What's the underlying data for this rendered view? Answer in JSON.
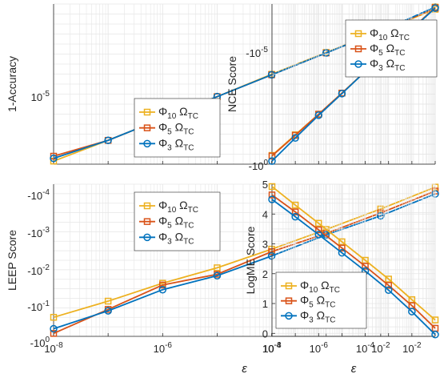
{
  "colors": {
    "phi10": "#EDB120",
    "phi5": "#D95319",
    "phi3": "#0072BD",
    "grid": "#e6e6e6",
    "axis": "#262626"
  },
  "chart_data": [
    {
      "type": "line",
      "ylabel": "1-Accuracy",
      "xscale": "log",
      "x": [
        1e-08,
        1e-07,
        1e-06,
        1e-05,
        0.0001,
        0.001,
        0.01,
        0.1
      ],
      "xlim": [
        1e-08,
        0.1
      ],
      "xtick_labels": [],
      "ytick_labels": [
        "10^{-5}"
      ],
      "grid": true,
      "legend": "bottom-right",
      "series": [
        {
          "name": "Φ10 ΩTC",
          "marker": "square",
          "values": [
            -1.2,
            -0.82,
            -0.42,
            -0.02,
            0.39,
            0.79,
            1.18,
            1.58
          ]
        },
        {
          "name": "Φ5 ΩTC",
          "marker": "square",
          "values": [
            -1.11,
            -0.82,
            -0.42,
            -0.02,
            0.38,
            0.78,
            1.18,
            1.6
          ]
        },
        {
          "name": "Φ3 ΩTC",
          "marker": "circle",
          "values": [
            -1.15,
            -0.82,
            -0.42,
            -0.02,
            0.38,
            0.78,
            1.18,
            1.62
          ]
        }
      ]
    },
    {
      "type": "line",
      "ylabel": "NCE Score",
      "xscale": "log",
      "x": [
        1e-08,
        1e-07,
        1e-06,
        1e-05,
        0.0001,
        0.001,
        0.01,
        0.1
      ],
      "xlim": [
        1e-08,
        0.1
      ],
      "xtick_labels": [],
      "ytick_labels": [
        "-10^{-5}",
        "-10^{0}"
      ],
      "grid": true,
      "legend": "top-right",
      "series": [
        {
          "name": "Φ10 ΩTC",
          "marker": "square",
          "values": [
            -5.73,
            -5.33,
            -4.93,
            -4.52,
            -4.1,
            -3.69,
            -3.28,
            -2.85
          ]
        },
        {
          "name": "Φ5 ΩTC",
          "marker": "square",
          "values": [
            -5.74,
            -5.34,
            -4.93,
            -4.52,
            -4.1,
            -3.68,
            -3.27,
            -2.86
          ]
        },
        {
          "name": "Φ3 ΩTC",
          "marker": "circle",
          "values": [
            -5.84,
            -5.39,
            -4.95,
            -4.53,
            -4.1,
            -3.68,
            -3.28,
            -2.87
          ]
        }
      ]
    },
    {
      "type": "line",
      "ylabel": "LEEP Score",
      "xlabel": "ε",
      "xscale": "log",
      "x": [
        1e-08,
        1e-07,
        1e-06,
        1e-05,
        0.0001,
        0.001,
        0.01,
        0.1
      ],
      "xlim": [
        1e-08,
        0.1
      ],
      "xtick_labels": [
        "10^{-8}",
        "10^{-6}",
        "10^{-4}",
        "10^{-2}"
      ],
      "ytick_labels": [
        "-10^{-4}",
        "-10^{-3}",
        "-10^{-2}",
        "-10^{-1}",
        "-10^{0}"
      ],
      "grid": true,
      "legend": "top-right",
      "series": [
        {
          "name": "Φ10 ΩTC",
          "marker": "square",
          "values": [
            -3.8,
            -3.35,
            -2.85,
            -2.42,
            -1.9,
            -1.35,
            -0.78,
            -0.17
          ]
        },
        {
          "name": "Φ5 ΩTC",
          "marker": "square",
          "values": [
            -4.25,
            -3.58,
            -2.9,
            -2.6,
            -1.97,
            -1.46,
            -0.89,
            -0.28
          ]
        },
        {
          "name": "Φ3 ΩTC",
          "marker": "circle",
          "values": [
            -4.12,
            -3.62,
            -3.03,
            -2.64,
            -2.09,
            -1.5,
            -0.97,
            -0.36
          ]
        }
      ]
    },
    {
      "type": "line",
      "ylabel": "LogME Score",
      "xlabel": "ε",
      "xscale": "log",
      "x": [
        1e-08,
        1e-07,
        1e-06,
        1e-05,
        0.0001,
        0.001,
        0.01,
        0.1
      ],
      "xlim": [
        1e-08,
        0.1
      ],
      "ylim": [
        -0.1,
        5
      ],
      "xtick_labels": [
        "10^{-8}",
        "10^{-6}",
        "10^{-4}",
        "10^{-2}"
      ],
      "ytick_labels": [
        "0",
        "1",
        "2",
        "3",
        "4",
        "5"
      ],
      "grid": true,
      "legend": "bottom-left",
      "series": [
        {
          "name": "Φ10 ΩTC",
          "marker": "square",
          "values": [
            4.92,
            4.3,
            3.69,
            3.07,
            2.45,
            1.82,
            1.13,
            0.45
          ]
        },
        {
          "name": "Φ5 ΩTC",
          "marker": "square",
          "values": [
            4.64,
            4.07,
            3.47,
            2.86,
            2.25,
            1.61,
            0.93,
            0.17
          ]
        },
        {
          "name": "Φ3 ΩTC",
          "marker": "circle",
          "values": [
            4.49,
            3.91,
            3.31,
            2.7,
            2.09,
            1.45,
            0.73,
            -0.04
          ]
        }
      ]
    }
  ]
}
